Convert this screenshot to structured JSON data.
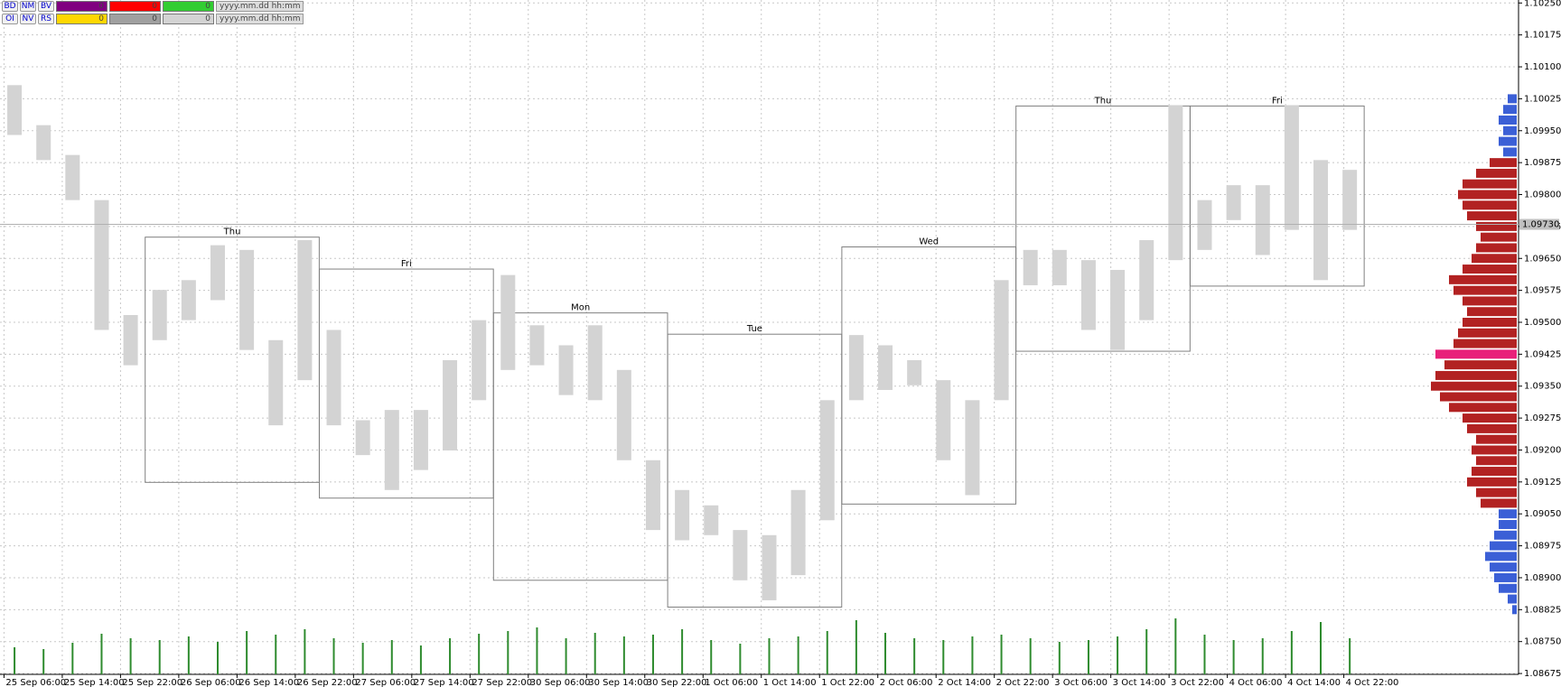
{
  "toolbar": {
    "rows": [
      {
        "buttons": [
          "BD",
          "NM",
          "BV"
        ],
        "fields": [
          {
            "color": "#800080",
            "text": "0"
          },
          {
            "color": "#ff0000",
            "text": "0"
          },
          {
            "color": "#32cd32",
            "text": "0"
          }
        ],
        "date": "yyyy.mm.dd hh:mm"
      },
      {
        "buttons": [
          "OI",
          "NV",
          "RS"
        ],
        "fields": [
          {
            "color": "#ffd700",
            "text": "0"
          },
          {
            "color": "#a0a0a0",
            "text": "0"
          },
          {
            "color": "#d3d3d3",
            "text": "0"
          }
        ],
        "date": "yyyy.mm.dd hh:mm"
      }
    ]
  },
  "chart_data": {
    "type": "range-bar",
    "color": "#d3d3d3",
    "grid": true,
    "ylim": [
      1.08673,
      1.10257
    ],
    "yticks": [
      1.08675,
      {
        "value": 1.0875,
        "label": "1.08750"
      },
      1.08825,
      {
        "value": 1.089,
        "label": "1.08900"
      },
      1.08975,
      {
        "value": 1.0905,
        "label": "1.09050"
      },
      1.09125,
      {
        "value": 1.092,
        "label": "1.09200"
      },
      1.09275,
      {
        "value": 1.0935,
        "label": "1.09350"
      },
      1.09425,
      {
        "value": 1.095,
        "label": "1.09500"
      },
      1.09575,
      {
        "value": 1.0965,
        "label": "1.09650"
      },
      1.09725,
      {
        "value": 1.098,
        "label": "1.09800"
      },
      1.09875,
      {
        "value": 1.0995,
        "label": "1.09950"
      },
      1.10025,
      {
        "value": 1.101,
        "label": "1.10100"
      },
      1.10175,
      {
        "value": 1.1025,
        "label": "1.10250"
      }
    ],
    "xticks": [
      "25 Sep 06:00",
      "25 Sep 14:00",
      "25 Sep 22:00",
      "26 Sep 06:00",
      "26 Sep 14:00",
      "26 Sep 22:00",
      "27 Sep 06:00",
      "27 Sep 14:00",
      "27 Sep 22:00",
      "30 Sep 06:00",
      "30 Sep 14:00",
      "30 Sep 22:00",
      "1 Oct 06:00",
      "1 Oct 14:00",
      "1 Oct 22:00",
      "2 Oct 06:00",
      "2 Oct 14:00",
      "2 Oct 22:00",
      "3 Oct 06:00",
      "3 Oct 14:00",
      "3 Oct 22:00",
      "4 Oct 06:00",
      "4 Oct 14:00",
      "4 Oct 22:00"
    ],
    "highs": [
      1.10057,
      1.09963,
      1.09893,
      1.09787,
      1.09517,
      1.09576,
      1.09599,
      1.09681,
      1.0967,
      1.09458,
      1.09693,
      1.09482,
      1.0927,
      1.09294,
      1.09294,
      1.09411,
      1.09505,
      1.09611,
      1.09493,
      1.09446,
      1.09493,
      1.09388,
      1.09176,
      1.09106,
      1.0907,
      1.09012,
      1.09,
      1.09106,
      1.09317,
      1.0947,
      1.09446,
      1.09411,
      1.09364,
      1.09317,
      1.09599,
      1.0967,
      1.0967,
      1.09646,
      1.09623,
      1.09693,
      1.1001,
      1.09787,
      1.09822,
      1.09822,
      1.1001,
      1.09881,
      1.09858
    ],
    "lows": [
      1.0994,
      1.09881,
      1.09787,
      1.09482,
      1.09399,
      1.09458,
      1.09505,
      1.09552,
      1.09435,
      1.09258,
      1.09364,
      1.09258,
      1.09188,
      1.09106,
      1.09153,
      1.09199,
      1.09317,
      1.09388,
      1.09399,
      1.09329,
      1.09317,
      1.09176,
      1.09012,
      1.08988,
      1.09,
      1.08894,
      1.08847,
      1.08906,
      1.09035,
      1.09317,
      1.09341,
      1.09352,
      1.09176,
      1.09094,
      1.09317,
      1.09587,
      1.09587,
      1.09482,
      1.09435,
      1.09505,
      1.09646,
      1.0967,
      1.0974,
      1.09658,
      1.09717,
      1.09599,
      1.09717
    ],
    "volume": {
      "color": "#2e8b2e",
      "values": [
        30,
        28,
        35,
        45,
        40,
        38,
        42,
        36,
        48,
        44,
        50,
        40,
        35,
        38,
        32,
        40,
        45,
        48,
        52,
        40,
        46,
        42,
        44,
        50,
        38,
        34,
        40,
        42,
        48,
        60,
        46,
        40,
        38,
        42,
        44,
        40,
        36,
        38,
        42,
        50,
        62,
        44,
        38,
        40,
        48,
        58,
        40
      ]
    },
    "sessions": [
      {
        "label": "Thu",
        "start": 5,
        "end": 10,
        "high": 1.097,
        "low": 1.09124
      },
      {
        "label": "Fri",
        "start": 11,
        "end": 16,
        "high": 1.09625,
        "low": 1.09087
      },
      {
        "label": "Mon",
        "start": 17,
        "end": 22,
        "high": 1.09522,
        "low": 1.08894
      },
      {
        "label": "Tue",
        "start": 23,
        "end": 28,
        "high": 1.09472,
        "low": 1.08831
      },
      {
        "label": "Wed",
        "start": 29,
        "end": 34,
        "high": 1.09677,
        "low": 1.09073
      },
      {
        "label": "Thu",
        "start": 35,
        "end": 40,
        "high": 1.10008,
        "low": 1.09432
      },
      {
        "label": "Fri",
        "start": 41,
        "end": 46,
        "high": 1.10008,
        "low": 1.09585
      }
    ],
    "current_price": {
      "value": 1.0973,
      "label": "1.09730"
    },
    "profile": {
      "prices": [
        1.08825,
        1.0885,
        1.08875,
        1.089,
        1.08925,
        1.0895,
        1.08975,
        1.09,
        1.09025,
        1.0905,
        1.09075,
        1.091,
        1.09125,
        1.0915,
        1.09175,
        1.092,
        1.09225,
        1.0925,
        1.09275,
        1.093,
        1.09325,
        1.0935,
        1.09375,
        1.094,
        1.09425,
        1.0945,
        1.09475,
        1.095,
        1.09525,
        1.0955,
        1.09575,
        1.096,
        1.09625,
        1.0965,
        1.09675,
        1.097,
        1.09725,
        1.0975,
        1.09775,
        1.098,
        1.09825,
        1.0985,
        1.09875,
        1.099,
        1.09925,
        1.0995,
        1.09975,
        1.1,
        1.10025
      ],
      "values": [
        5,
        10,
        20,
        25,
        30,
        35,
        30,
        25,
        20,
        20,
        40,
        45,
        55,
        50,
        45,
        50,
        45,
        55,
        60,
        75,
        85,
        95,
        90,
        80,
        90,
        70,
        65,
        60,
        55,
        60,
        70,
        75,
        60,
        50,
        45,
        40,
        45,
        55,
        60,
        65,
        60,
        45,
        30,
        15,
        20,
        15,
        20,
        15,
        10
      ],
      "colors": [
        "#3b5fd6",
        "#3b5fd6",
        "#3b5fd6",
        "#3b5fd6",
        "#3b5fd6",
        "#3b5fd6",
        "#3b5fd6",
        "#3b5fd6",
        "#3b5fd6",
        "#3b5fd6",
        "#b22222",
        "#b22222",
        "#b22222",
        "#b22222",
        "#b22222",
        "#b22222",
        "#b22222",
        "#b22222",
        "#b22222",
        "#b22222",
        "#b22222",
        "#b22222",
        "#b22222",
        "#b22222",
        "#e8207a",
        "#b22222",
        "#b22222",
        "#b22222",
        "#b22222",
        "#b22222",
        "#b22222",
        "#b22222",
        "#b22222",
        "#b22222",
        "#b22222",
        "#b22222",
        "#b22222",
        "#b22222",
        "#b22222",
        "#b22222",
        "#b22222",
        "#b22222",
        "#b22222",
        "#3b5fd6",
        "#3b5fd6",
        "#3b5fd6",
        "#3b5fd6",
        "#3b5fd6",
        "#3b5fd6"
      ]
    }
  }
}
